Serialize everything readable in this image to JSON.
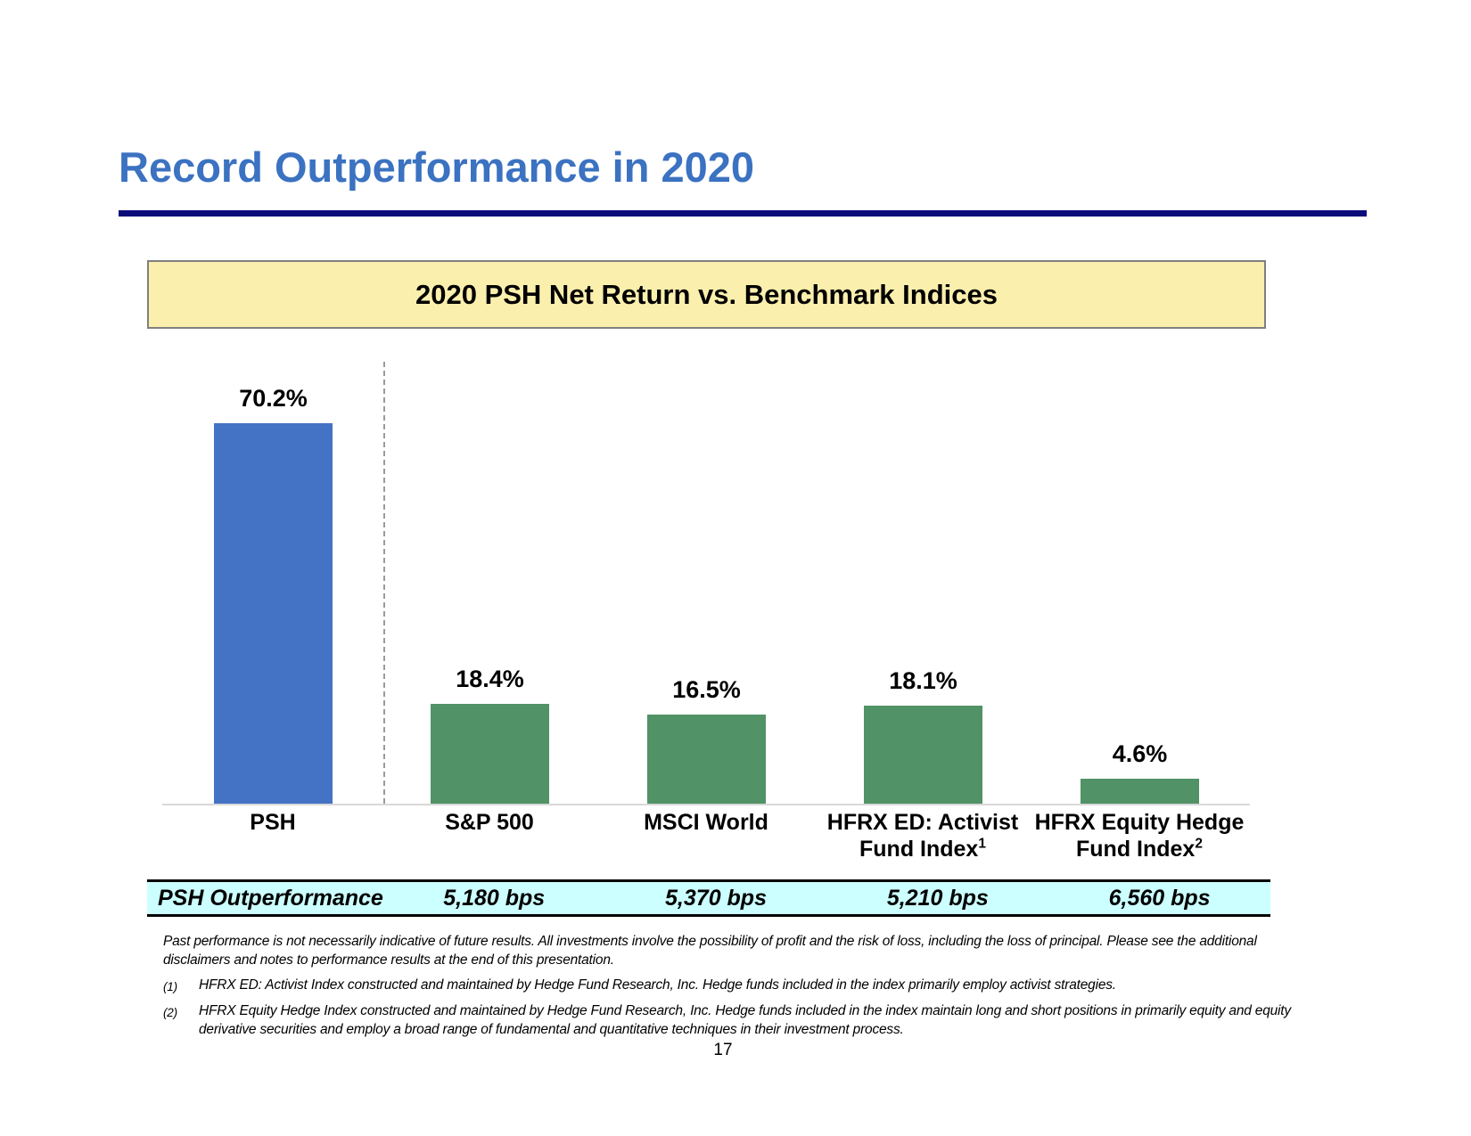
{
  "slide": {
    "title": "Record Outperformance in 2020",
    "page_number": "17"
  },
  "colors": {
    "title_blue": "#3B72C1",
    "underline_navy": "#0B0B7B",
    "psh_bar_blue": "#4472C4",
    "benchmark_bar_green": "#519266",
    "header_box_yellow": "#FBEFAD",
    "table_row_cyan": "#CCFFFF",
    "baseline_gray": "#D9D9D9"
  },
  "chart_data": {
    "type": "bar",
    "title": "2020 PSH Net Return vs. Benchmark Indices",
    "categories": [
      "PSH",
      "S&P 500",
      "MSCI World",
      "HFRX ED: Activist Fund Index¹",
      "HFRX Equity Hedge Fund Index²"
    ],
    "values": [
      70.2,
      18.4,
      16.5,
      18.1,
      4.6
    ],
    "value_labels": [
      "70.2%",
      "18.4%",
      "16.5%",
      "18.1%",
      "4.6%"
    ],
    "unit": "%",
    "ylim": [
      0,
      75
    ],
    "grid": false,
    "legend": false,
    "notes": "PSH bar is blue; benchmark bars are green; dashed divider separates PSH from benchmarks",
    "category_label_lines": [
      {
        "line1": "PSH",
        "line2": "",
        "sup": ""
      },
      {
        "line1": "S&P 500",
        "line2": "",
        "sup": ""
      },
      {
        "line1": "MSCI World",
        "line2": "",
        "sup": ""
      },
      {
        "line1": "HFRX ED: Activist",
        "line2": "Fund Index",
        "sup": "1"
      },
      {
        "line1": "HFRX Equity Hedge",
        "line2": "Fund Index",
        "sup": "2"
      }
    ]
  },
  "outperformance_table": {
    "row_label": "PSH Outperformance",
    "values": [
      "5,180 bps",
      "5,370 bps",
      "5,210 bps",
      "6,560 bps"
    ]
  },
  "footnotes": {
    "disclaimer": "Past performance is not necessarily indicative of future results. All investments involve the possibility of profit and the risk of loss, including the loss of principal. Please see the additional disclaimers and notes to performance results at the end of this presentation.",
    "items": [
      {
        "marker": "(1)",
        "text": "HFRX ED: Activist Index constructed and maintained by Hedge Fund Research, Inc. Hedge funds included in the index primarily employ activist strategies."
      },
      {
        "marker": "(2)",
        "text": "HFRX Equity Hedge Index constructed and maintained by Hedge Fund Research, Inc. Hedge funds included in the index maintain long and short positions in primarily equity and equity derivative securities and employ a broad range of fundamental and quantitative techniques in their investment process."
      }
    ]
  }
}
